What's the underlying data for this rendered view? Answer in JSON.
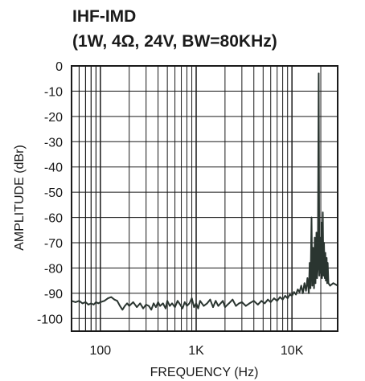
{
  "chart_data": {
    "type": "line",
    "title": "IHF-IMD",
    "subtitle": "(1W, 4Ω, 24V, BW=80KHz)",
    "xlabel": "FREQUENCY (Hz)",
    "ylabel": "AMPLITUDE (dBr)",
    "x_scale": "log",
    "xlim": [
      50,
      30000
    ],
    "ylim": [
      -105,
      0
    ],
    "x_ticks": [
      {
        "value": 100,
        "label": "100"
      },
      {
        "value": 1000,
        "label": "1K"
      },
      {
        "value": 10000,
        "label": "10K"
      }
    ],
    "y_ticks": [
      {
        "value": 0,
        "label": "0"
      },
      {
        "value": -10,
        "label": "-10"
      },
      {
        "value": -20,
        "label": "-20"
      },
      {
        "value": -30,
        "label": "-30"
      },
      {
        "value": -40,
        "label": "-40"
      },
      {
        "value": -50,
        "label": "-50"
      },
      {
        "value": -60,
        "label": "-60"
      },
      {
        "value": -70,
        "label": "-70"
      },
      {
        "value": -80,
        "label": "-80"
      },
      {
        "value": -90,
        "label": "-90"
      },
      {
        "value": -100,
        "label": "-100"
      }
    ],
    "grid": true,
    "line_color": "#2a3530",
    "series": [
      {
        "values": [
          [
            50,
            -93
          ],
          [
            55,
            -93.5
          ],
          [
            60,
            -93
          ],
          [
            65,
            -94
          ],
          [
            70,
            -93.5
          ],
          [
            75,
            -94.5
          ],
          [
            80,
            -94
          ],
          [
            85,
            -94.5
          ],
          [
            90,
            -93.5
          ],
          [
            95,
            -94
          ],
          [
            100,
            -93.5
          ],
          [
            110,
            -93
          ],
          [
            120,
            -92
          ],
          [
            130,
            -91.5
          ],
          [
            140,
            -92.5
          ],
          [
            150,
            -93
          ],
          [
            160,
            -95
          ],
          [
            170,
            -96.5
          ],
          [
            180,
            -95
          ],
          [
            190,
            -94
          ],
          [
            200,
            -95
          ],
          [
            220,
            -93.5
          ],
          [
            240,
            -95.5
          ],
          [
            260,
            -94
          ],
          [
            280,
            -96
          ],
          [
            300,
            -94.5
          ],
          [
            320,
            -95
          ],
          [
            340,
            -96.5
          ],
          [
            360,
            -94
          ],
          [
            380,
            -95.5
          ],
          [
            400,
            -93.5
          ],
          [
            420,
            -95
          ],
          [
            450,
            -94
          ],
          [
            480,
            -96
          ],
          [
            500,
            -93
          ],
          [
            530,
            -95
          ],
          [
            560,
            -94
          ],
          [
            600,
            -95.5
          ],
          [
            640,
            -93
          ],
          [
            680,
            -94.5
          ],
          [
            720,
            -96
          ],
          [
            760,
            -93.5
          ],
          [
            800,
            -95
          ],
          [
            850,
            -94
          ],
          [
            900,
            -92
          ],
          [
            950,
            -95.5
          ],
          [
            1000,
            -94
          ],
          [
            1050,
            -96
          ],
          [
            1100,
            -93
          ],
          [
            1200,
            -95
          ],
          [
            1300,
            -94
          ],
          [
            1400,
            -92.5
          ],
          [
            1500,
            -95.5
          ],
          [
            1600,
            -93
          ],
          [
            1700,
            -95
          ],
          [
            1800,
            -94
          ],
          [
            1900,
            -93
          ],
          [
            2000,
            -95.5
          ],
          [
            2200,
            -94
          ],
          [
            2400,
            -92.5
          ],
          [
            2600,
            -95
          ],
          [
            2800,
            -94
          ],
          [
            3000,
            -93.5
          ],
          [
            3300,
            -95
          ],
          [
            3600,
            -94
          ],
          [
            4000,
            -93
          ],
          [
            4400,
            -94.5
          ],
          [
            4800,
            -93
          ],
          [
            5200,
            -94
          ],
          [
            5600,
            -92.5
          ],
          [
            6000,
            -93.5
          ],
          [
            6500,
            -92
          ],
          [
            7000,
            -93
          ],
          [
            7500,
            -91.5
          ],
          [
            8000,
            -92.5
          ],
          [
            8500,
            -91
          ],
          [
            9000,
            -92
          ],
          [
            9500,
            -90.5
          ],
          [
            10000,
            -91
          ],
          [
            10500,
            -89.5
          ],
          [
            11000,
            -90.5
          ],
          [
            11500,
            -88.5
          ],
          [
            12000,
            -89.5
          ],
          [
            12500,
            -87
          ],
          [
            13000,
            -90
          ],
          [
            13500,
            -86
          ],
          [
            14000,
            -89
          ],
          [
            14500,
            -84
          ],
          [
            15000,
            -90
          ],
          [
            15300,
            -78
          ],
          [
            15600,
            -88
          ],
          [
            16000,
            -60
          ],
          [
            16300,
            -87
          ],
          [
            16600,
            -72
          ],
          [
            17000,
            -88
          ],
          [
            17300,
            -68
          ],
          [
            17600,
            -86
          ],
          [
            18000,
            -66
          ],
          [
            18300,
            -84
          ],
          [
            18600,
            -80
          ],
          [
            19000,
            -3
          ],
          [
            19300,
            -83
          ],
          [
            19600,
            -68
          ],
          [
            20000,
            -82
          ],
          [
            20300,
            -62
          ],
          [
            20600,
            -84
          ],
          [
            21000,
            -58
          ],
          [
            21300,
            -83
          ],
          [
            21600,
            -70
          ],
          [
            22000,
            -84
          ],
          [
            22300,
            -74
          ],
          [
            22600,
            -85
          ],
          [
            23000,
            -76
          ],
          [
            23300,
            -86
          ],
          [
            23600,
            -78
          ],
          [
            24000,
            -86
          ],
          [
            25000,
            -87
          ],
          [
            27000,
            -86
          ],
          [
            30000,
            -87
          ]
        ]
      }
    ]
  }
}
